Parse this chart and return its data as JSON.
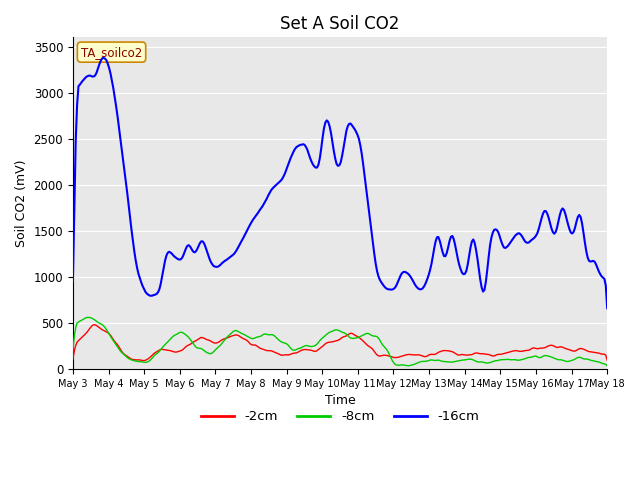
{
  "title": "Set A Soil CO2",
  "xlabel": "Time",
  "ylabel": "Soil CO2 (mV)",
  "legend_label": "TA_soilco2",
  "ylim": [
    0,
    3600
  ],
  "yticks": [
    0,
    500,
    1000,
    1500,
    2000,
    2500,
    3000,
    3500
  ],
  "xtick_labels": [
    "May 3",
    "May 4",
    "May 5",
    "May 6",
    "May 7",
    "May 8",
    "May 9",
    "May 10",
    "May 11",
    "May 12",
    "May 13",
    "May 14",
    "May 15",
    "May 16",
    "May 17",
    "May 18"
  ],
  "bg_color": "#e8e8e8",
  "plot_bg": "#dcdcdc",
  "line_colors": {
    "2cm": "#ff0000",
    "8cm": "#00cc00",
    "16cm": "#0000ff"
  },
  "legend_entries": [
    "-2cm",
    "-8cm",
    "-16cm"
  ],
  "legend_colors": [
    "#ff0000",
    "#00cc00",
    "#0000ff"
  ]
}
